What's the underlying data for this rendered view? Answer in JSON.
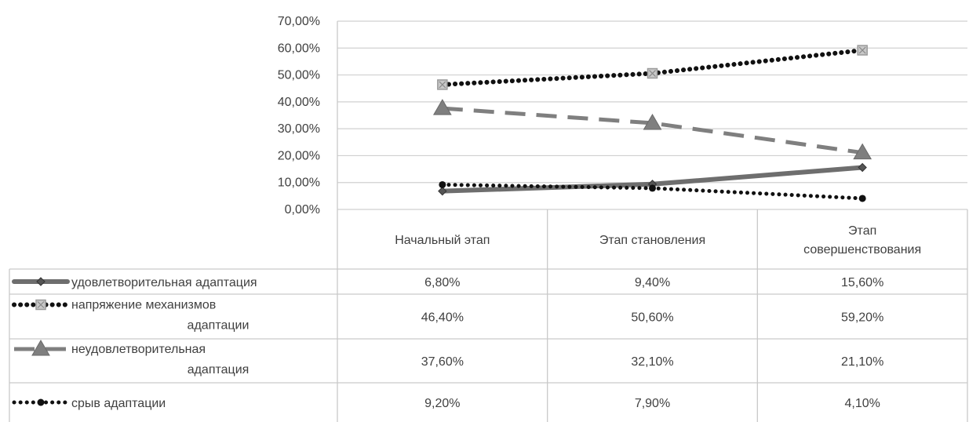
{
  "chart_data": {
    "type": "line",
    "categories": [
      [
        "Начальный этап"
      ],
      [
        "Этап становления"
      ],
      [
        "Этап",
        "совершенствования"
      ]
    ],
    "yticks": [
      "0,00%",
      "10,00%",
      "20,00%",
      "30,00%",
      "40,00%",
      "50,00%",
      "60,00%",
      "70,00%"
    ],
    "ylim": [
      0,
      70
    ],
    "grid": true,
    "data_table": true,
    "series": [
      {
        "name": [
          "удовлетворительная адаптация"
        ],
        "values": [
          6.8,
          9.4,
          15.6
        ],
        "value_labels": [
          "6,80%",
          "9,40%",
          "15,60%"
        ],
        "color": "#6e6e6e",
        "style": "solid",
        "marker": "diamond"
      },
      {
        "name": [
          "напряжение механизмов",
          "адаптации"
        ],
        "values": [
          46.4,
          50.6,
          59.2
        ],
        "value_labels": [
          "46,40%",
          "50,60%",
          "59,20%"
        ],
        "color": "#111111",
        "style": "dotted",
        "marker": "square"
      },
      {
        "name": [
          "неудовлетворительная",
          "адаптация"
        ],
        "values": [
          37.6,
          32.1,
          21.1
        ],
        "value_labels": [
          "37,60%",
          "32,10%",
          "21,10%"
        ],
        "color": "#7f7f7f",
        "style": "dashed",
        "marker": "triangle"
      },
      {
        "name": [
          "срыв адаптации"
        ],
        "values": [
          9.2,
          7.9,
          4.1
        ],
        "value_labels": [
          "9,20%",
          "7,90%",
          "4,10%"
        ],
        "color": "#111111",
        "style": "dotted",
        "marker": "circle"
      }
    ]
  }
}
